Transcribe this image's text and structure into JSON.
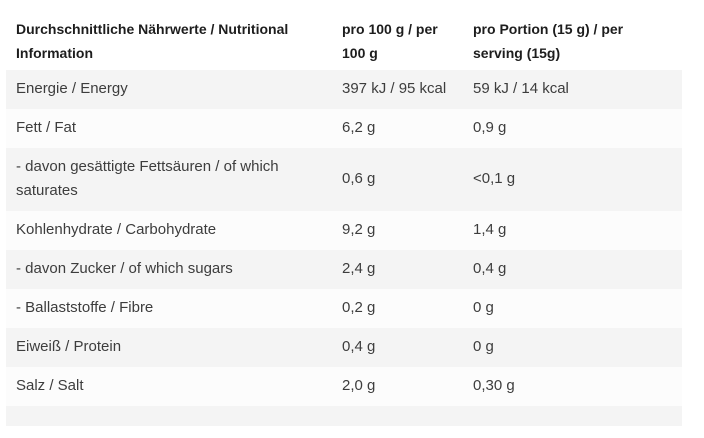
{
  "page": {
    "background": "#ffffff"
  },
  "table": {
    "header": {
      "nutrient": "Durchschnittliche Nährwerte / Nutritional Information",
      "per_100g": "pro 100 g / per 100 g",
      "per_serving": "pro Portion (15 g) / per serving (15g)"
    },
    "rows": [
      {
        "label": "Energie / Energy",
        "per_100g": "397 kJ / 95 kcal",
        "per_serving": "59 kJ / 14 kcal"
      },
      {
        "label": "Fett / Fat",
        "per_100g": "6,2 g",
        "per_serving": "0,9 g"
      },
      {
        "label": "- davon gesättigte Fettsäuren / of which saturates",
        "per_100g": "0,6 g",
        "per_serving": "<0,1 g"
      },
      {
        "label": "Kohlenhydrate / Carbohydrate",
        "per_100g": "9,2 g",
        "per_serving": "1,4 g"
      },
      {
        "label": "- davon Zucker / of which sugars",
        "per_100g": "2,4 g",
        "per_serving": "0,4 g"
      },
      {
        "label": "- Ballaststoffe / Fibre",
        "per_100g": "0,2 g",
        "per_serving": "0 g"
      },
      {
        "label": "Eiweiß / Protein",
        "per_100g": "0,4 g",
        "per_serving": "0 g"
      },
      {
        "label": "Salz / Salt",
        "per_100g": "2,0 g",
        "per_serving": "0,30 g"
      }
    ],
    "colors": {
      "stripe_row": "#f4f4f4",
      "alt_row": "#fcfcfc",
      "header_text": "#1d1d1d",
      "body_text": "#3d3d3d",
      "page_bg": "#ffffff"
    }
  }
}
